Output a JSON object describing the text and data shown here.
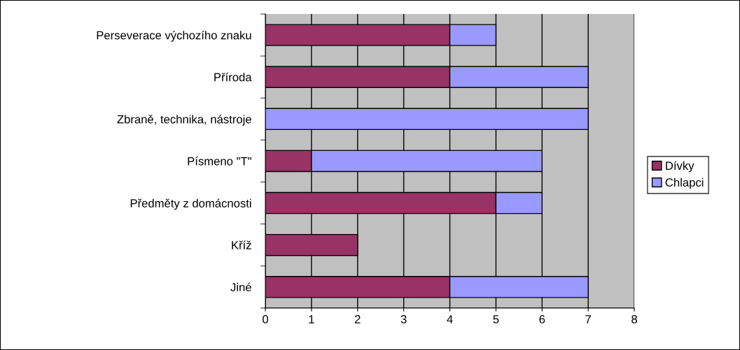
{
  "chart_data": {
    "type": "bar",
    "orientation": "horizontal",
    "stacked": true,
    "categories": [
      "Perseverace výchozího znaku",
      "Příroda",
      "Zbraně, technika, nástroje",
      "Písmeno \"T\"",
      "Předměty z domácnosti",
      "Kříž",
      "Jiné"
    ],
    "series": [
      {
        "name": "Dívky",
        "color": "#993366",
        "values": [
          4,
          4,
          0,
          1,
          5,
          2,
          4
        ]
      },
      {
        "name": "Chlapci",
        "color": "#9999ff",
        "values": [
          1,
          3,
          7,
          5,
          1,
          0,
          3
        ]
      }
    ],
    "xlim": [
      0,
      8
    ],
    "xticks": [
      0,
      1,
      2,
      3,
      4,
      5,
      6,
      7,
      8
    ],
    "grid": "x",
    "legend": "right"
  }
}
